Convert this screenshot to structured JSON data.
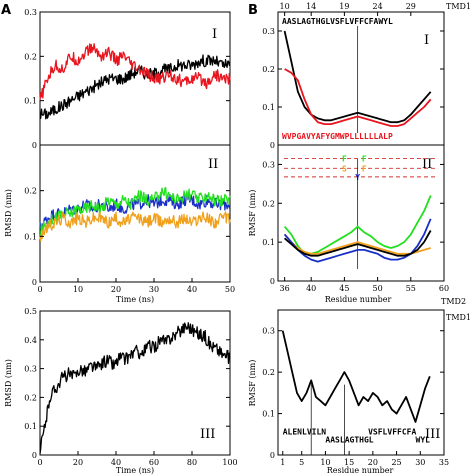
{
  "figure": {
    "letters": [
      "A",
      "B"
    ],
    "colors": {
      "black": "#000000",
      "red": "#e8141e",
      "blue": "#1a2fc8",
      "green": "#22e01e",
      "orange": "#f0a01c",
      "dash": "#d43030"
    }
  },
  "chart_data": [
    {
      "type": "line",
      "id": "A-I",
      "panel_label": "I",
      "xlim": [
        0,
        50
      ],
      "ylim": [
        0,
        0.3
      ],
      "x_ticks": [
        0,
        10,
        20,
        30,
        40,
        50
      ],
      "y_ticks": [
        0,
        0.1,
        0.2,
        0.3
      ],
      "y_tick_labels": [
        "0",
        "0.1",
        "0.2",
        "0.3"
      ],
      "series": [
        {
          "color": "#000000",
          "x": [
            0,
            2,
            4,
            6,
            8,
            10,
            12,
            14,
            16,
            18,
            20,
            22,
            24,
            26,
            28,
            30,
            32,
            34,
            36,
            38,
            40,
            42,
            44,
            46,
            48,
            50
          ],
          "values": [
            0.07,
            0.07,
            0.08,
            0.09,
            0.1,
            0.11,
            0.12,
            0.13,
            0.14,
            0.15,
            0.15,
            0.15,
            0.16,
            0.17,
            0.16,
            0.16,
            0.17,
            0.17,
            0.18,
            0.18,
            0.18,
            0.19,
            0.19,
            0.19,
            0.18,
            0.18
          ]
        },
        {
          "color": "#e8141e",
          "x": [
            0,
            2,
            4,
            6,
            8,
            10,
            12,
            14,
            16,
            18,
            20,
            22,
            24,
            26,
            28,
            30,
            32,
            34,
            36,
            38,
            40,
            42,
            44,
            46,
            48,
            50
          ],
          "values": [
            0.1,
            0.15,
            0.18,
            0.17,
            0.2,
            0.19,
            0.21,
            0.22,
            0.2,
            0.21,
            0.19,
            0.2,
            0.18,
            0.17,
            0.16,
            0.15,
            0.15,
            0.16,
            0.15,
            0.14,
            0.15,
            0.15,
            0.14,
            0.16,
            0.15,
            0.15
          ]
        }
      ]
    },
    {
      "type": "line",
      "id": "A-II",
      "panel_label": "II",
      "ylabel": "RMSD (nm)",
      "xlabel": "Time (ns)",
      "xlim": [
        0,
        50
      ],
      "ylim": [
        0,
        0.3
      ],
      "x_ticks": [
        0,
        10,
        20,
        30,
        40,
        50
      ],
      "y_ticks": [
        0,
        0.1,
        0.2
      ],
      "y_tick_labels": [
        "0",
        "0.1",
        "0.2"
      ],
      "series": [
        {
          "color": "#1a2fc8",
          "x": [
            0,
            2,
            4,
            6,
            8,
            10,
            12,
            14,
            16,
            18,
            20,
            22,
            24,
            26,
            28,
            30,
            32,
            34,
            36,
            38,
            40,
            42,
            44,
            46,
            48,
            50
          ],
          "values": [
            0.12,
            0.14,
            0.15,
            0.15,
            0.16,
            0.16,
            0.17,
            0.16,
            0.17,
            0.16,
            0.17,
            0.16,
            0.17,
            0.17,
            0.18,
            0.17,
            0.18,
            0.18,
            0.17,
            0.18,
            0.18,
            0.17,
            0.18,
            0.17,
            0.17,
            0.17
          ]
        },
        {
          "color": "#22e01e",
          "x": [
            0,
            2,
            4,
            6,
            8,
            10,
            12,
            14,
            16,
            18,
            20,
            22,
            24,
            26,
            28,
            30,
            32,
            34,
            36,
            38,
            40,
            42,
            44,
            46,
            48,
            50
          ],
          "values": [
            0.11,
            0.13,
            0.14,
            0.15,
            0.15,
            0.16,
            0.16,
            0.17,
            0.16,
            0.18,
            0.17,
            0.18,
            0.17,
            0.19,
            0.18,
            0.18,
            0.2,
            0.19,
            0.18,
            0.19,
            0.19,
            0.18,
            0.19,
            0.18,
            0.18,
            0.18
          ]
        },
        {
          "color": "#f0a01c",
          "x": [
            0,
            2,
            4,
            6,
            8,
            10,
            12,
            14,
            16,
            18,
            20,
            22,
            24,
            26,
            28,
            30,
            32,
            34,
            36,
            38,
            40,
            42,
            44,
            46,
            48,
            50
          ],
          "values": [
            0.1,
            0.12,
            0.13,
            0.14,
            0.13,
            0.14,
            0.13,
            0.14,
            0.14,
            0.13,
            0.14,
            0.13,
            0.14,
            0.14,
            0.13,
            0.14,
            0.13,
            0.14,
            0.13,
            0.14,
            0.13,
            0.14,
            0.14,
            0.13,
            0.14,
            0.14
          ]
        }
      ]
    },
    {
      "type": "line",
      "id": "A-III",
      "panel_label": "III",
      "ylabel": "RMSD (nm)",
      "xlabel": "Time (ns)",
      "xlim": [
        0,
        100
      ],
      "ylim": [
        0,
        0.5
      ],
      "x_ticks": [
        0,
        20,
        40,
        60,
        80,
        100
      ],
      "y_ticks": [
        0,
        0.1,
        0.2,
        0.3,
        0.4,
        0.5
      ],
      "y_tick_labels": [
        "0",
        "0.1",
        "0.2",
        "0.3",
        "0.4",
        "0.5"
      ],
      "series": [
        {
          "color": "#000000",
          "x": [
            0,
            1,
            2,
            3,
            4,
            5,
            7,
            9,
            12,
            15,
            18,
            21,
            24,
            27,
            30,
            33,
            36,
            39,
            42,
            45,
            48,
            51,
            54,
            57,
            60,
            63,
            66,
            69,
            72,
            75,
            78,
            81,
            84,
            87,
            90,
            93,
            96,
            99,
            100
          ],
          "values": [
            0.0,
            0.05,
            0.08,
            0.12,
            0.15,
            0.2,
            0.22,
            0.24,
            0.27,
            0.28,
            0.27,
            0.3,
            0.29,
            0.31,
            0.3,
            0.32,
            0.33,
            0.31,
            0.34,
            0.33,
            0.35,
            0.36,
            0.35,
            0.38,
            0.37,
            0.4,
            0.39,
            0.41,
            0.42,
            0.44,
            0.45,
            0.43,
            0.42,
            0.41,
            0.38,
            0.37,
            0.35,
            0.34,
            0.33
          ]
        }
      ]
    },
    {
      "type": "line",
      "id": "B-I",
      "panel_label": "I",
      "xlim": [
        35,
        60
      ],
      "ylim": [
        0,
        0.35
      ],
      "y_ticks": [
        0,
        0.1,
        0.2,
        0.3
      ],
      "y_tick_labels": [
        "0",
        "0.1",
        "0.2",
        "0.3"
      ],
      "top_ticks": [
        10,
        14,
        19,
        24,
        29
      ],
      "top_tick_labels": [
        "10",
        "14",
        "19",
        "24",
        "29"
      ],
      "top_tick_x": [
        36,
        40,
        45,
        50,
        55
      ],
      "top_label": "TMD1",
      "sequence_top": "AASLAGTHGLVSFLVFFCFAWYL",
      "sequence_bottom": "WVPGAVYAFYGMWPLLLLLLALP",
      "marker_x": 47,
      "series": [
        {
          "color": "#000000",
          "x": [
            36,
            37,
            38,
            39,
            40,
            41,
            42,
            43,
            44,
            45,
            46,
            47,
            48,
            49,
            50,
            51,
            52,
            53,
            54,
            55,
            56,
            57,
            58
          ],
          "values": [
            0.3,
            0.22,
            0.14,
            0.1,
            0.08,
            0.07,
            0.065,
            0.065,
            0.07,
            0.075,
            0.08,
            0.085,
            0.08,
            0.075,
            0.07,
            0.065,
            0.06,
            0.06,
            0.065,
            0.08,
            0.1,
            0.12,
            0.14
          ]
        },
        {
          "color": "#e8141e",
          "x": [
            36,
            37,
            38,
            39,
            40,
            41,
            42,
            43,
            44,
            45,
            46,
            47,
            48,
            49,
            50,
            51,
            52,
            53,
            54,
            55,
            56,
            57,
            58
          ],
          "values": [
            0.2,
            0.19,
            0.17,
            0.12,
            0.08,
            0.06,
            0.055,
            0.055,
            0.06,
            0.065,
            0.07,
            0.075,
            0.07,
            0.065,
            0.06,
            0.055,
            0.05,
            0.05,
            0.055,
            0.07,
            0.085,
            0.1,
            0.12
          ]
        }
      ]
    },
    {
      "type": "line",
      "id": "B-II",
      "panel_label": "II",
      "ylabel": "RMSF (nm)",
      "xlabel": "Residue number",
      "xlim": [
        35,
        60
      ],
      "ylim": [
        0,
        0.35
      ],
      "x_ticks": [
        36,
        40,
        45,
        50,
        55,
        60
      ],
      "y_ticks": [
        0,
        0.1,
        0.2,
        0.3
      ],
      "y_tick_labels": [
        "0",
        "0.1",
        "0.2",
        "0.3"
      ],
      "bottom_label": "TMD2",
      "marker_x": 47,
      "mutations": [
        {
          "text": "F",
          "color": "#22e01e",
          "x": 45,
          "y": 0.315
        },
        {
          "text": "F",
          "color": "#22e01e",
          "x": 48,
          "y": 0.315
        },
        {
          "text": "S",
          "color": "#f0a01c",
          "x": 45,
          "y": 0.29
        },
        {
          "text": "F",
          "color": "#f0a01c",
          "x": 48,
          "y": 0.29
        },
        {
          "text": "Y",
          "color": "#1a2fc8",
          "x": 47,
          "y": 0.268
        }
      ],
      "dashed_lines_y": [
        0.315,
        0.29,
        0.268
      ],
      "series": [
        {
          "color": "#22e01e",
          "x": [
            36,
            37,
            38,
            39,
            40,
            41,
            42,
            43,
            44,
            45,
            46,
            47,
            48,
            49,
            50,
            51,
            52,
            53,
            54,
            55,
            56,
            57,
            58
          ],
          "values": [
            0.14,
            0.12,
            0.09,
            0.07,
            0.07,
            0.075,
            0.085,
            0.095,
            0.105,
            0.115,
            0.125,
            0.14,
            0.125,
            0.115,
            0.1,
            0.09,
            0.085,
            0.09,
            0.1,
            0.12,
            0.15,
            0.18,
            0.22
          ]
        },
        {
          "color": "#f0a01c",
          "x": [
            36,
            37,
            38,
            39,
            40,
            41,
            42,
            43,
            44,
            45,
            46,
            47,
            48,
            49,
            50,
            51,
            52,
            53,
            54,
            55,
            56,
            57,
            58
          ],
          "values": [
            0.12,
            0.1,
            0.085,
            0.075,
            0.07,
            0.07,
            0.075,
            0.08,
            0.085,
            0.09,
            0.095,
            0.1,
            0.095,
            0.09,
            0.085,
            0.08,
            0.075,
            0.07,
            0.07,
            0.07,
            0.075,
            0.08,
            0.085
          ]
        },
        {
          "color": "#1a2fc8",
          "x": [
            36,
            37,
            38,
            39,
            40,
            41,
            42,
            43,
            44,
            45,
            46,
            47,
            48,
            49,
            50,
            51,
            52,
            53,
            54,
            55,
            56,
            57,
            58
          ],
          "values": [
            0.12,
            0.1,
            0.08,
            0.065,
            0.055,
            0.05,
            0.055,
            0.06,
            0.065,
            0.07,
            0.075,
            0.08,
            0.08,
            0.075,
            0.07,
            0.06,
            0.055,
            0.055,
            0.06,
            0.07,
            0.09,
            0.12,
            0.16
          ]
        },
        {
          "color": "#000000",
          "x": [
            36,
            37,
            38,
            39,
            40,
            41,
            42,
            43,
            44,
            45,
            46,
            47,
            48,
            49,
            50,
            51,
            52,
            53,
            54,
            55,
            56,
            57,
            58
          ],
          "values": [
            0.11,
            0.095,
            0.08,
            0.07,
            0.065,
            0.065,
            0.07,
            0.075,
            0.08,
            0.085,
            0.09,
            0.095,
            0.09,
            0.085,
            0.08,
            0.075,
            0.07,
            0.065,
            0.065,
            0.07,
            0.08,
            0.1,
            0.13
          ]
        }
      ]
    },
    {
      "type": "line",
      "id": "B-III",
      "panel_label": "III",
      "ylabel": "RMSF (nm)",
      "xlabel": "Residue number",
      "xlim": [
        0,
        35
      ],
      "ylim": [
        0,
        0.35
      ],
      "x_ticks": [
        1,
        5,
        10,
        15,
        20,
        25,
        30,
        35
      ],
      "y_ticks": [
        0,
        0.1,
        0.2,
        0.3
      ],
      "y_tick_labels": [
        "0",
        "0.1",
        "0.2",
        "0.3"
      ],
      "top_label": "TMD1",
      "marker_x": [
        7,
        14
      ],
      "sequences": [
        {
          "text": "ALENLVILN",
          "x": 1,
          "y": 0.05
        },
        {
          "text": "AASLAGTHGL",
          "x": 10,
          "y": 0.03
        },
        {
          "text": "VSFLVFFCFA",
          "x": 19,
          "y": 0.05
        },
        {
          "text": "WYL",
          "x": 29,
          "y": 0.03
        }
      ],
      "series": [
        {
          "color": "#000000",
          "x": [
            1,
            2,
            3,
            4,
            5,
            6,
            7,
            8,
            9,
            10,
            11,
            12,
            13,
            14,
            15,
            16,
            17,
            18,
            19,
            20,
            21,
            22,
            23,
            24,
            25,
            26,
            27,
            28,
            29,
            30,
            31,
            32
          ],
          "values": [
            0.3,
            0.25,
            0.2,
            0.15,
            0.13,
            0.15,
            0.18,
            0.14,
            0.13,
            0.12,
            0.14,
            0.16,
            0.18,
            0.2,
            0.18,
            0.15,
            0.12,
            0.14,
            0.13,
            0.15,
            0.14,
            0.12,
            0.13,
            0.11,
            0.1,
            0.12,
            0.14,
            0.11,
            0.08,
            0.12,
            0.16,
            0.19
          ]
        }
      ]
    }
  ]
}
